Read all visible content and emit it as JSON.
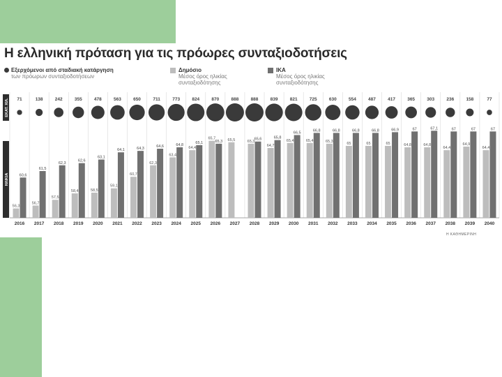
{
  "title": "Η ελληνική πρόταση για τις πρόωρες συνταξιοδοτήσεις",
  "legend": {
    "exits": {
      "label": "Εξερχόμενοι από σταδιακή κατάργηση",
      "sub": "των πρόωρων συνταξιοδοτήσεων",
      "color": "#3a3a3a"
    },
    "public": {
      "label": "Δημόσιο",
      "sub": "Μέσος όρος ηλικίας συνταξιοδότησης",
      "color": "#bdbdbd"
    },
    "ika": {
      "label": "ΙΚΑ",
      "sub": "Μέσος όρος ηλικίας συνταξιοδότησης",
      "color": "#707070"
    }
  },
  "side_labels": {
    "exits": "ΕΚΑΤ. ΧΙΛ.",
    "age": "ΗΛΙΚΙΑ"
  },
  "credit": "Η ΚΑΘΗΜΕΡΙΝΗ",
  "chart_data": {
    "type": "bar",
    "categories": [
      "2016",
      "2017",
      "2018",
      "2019",
      "2020",
      "2021",
      "2022",
      "2023",
      "2024",
      "2025",
      "2026",
      "2027",
      "2028",
      "2029",
      "2030",
      "2031",
      "2032",
      "2033",
      "2034",
      "2035",
      "2036",
      "2037",
      "2038",
      "2039",
      "2040"
    ],
    "exits": [
      71,
      138,
      242,
      355,
      478,
      563,
      650,
      711,
      773,
      824,
      870,
      888,
      888,
      839,
      821,
      725,
      630,
      554,
      487,
      417,
      365,
      303,
      236,
      158,
      77
    ],
    "exits_labels": [
      "71",
      "138",
      "242",
      "355",
      "478",
      "563",
      "650",
      "711",
      "773",
      "824",
      "870",
      "888",
      "888",
      "839",
      "821",
      "725",
      "630",
      "554",
      "487",
      "417",
      "365",
      "303",
      "236",
      "158",
      "77"
    ],
    "series": [
      {
        "name": "Δημόσιο",
        "color": "#bdbdbd",
        "values": [
          56.3,
          56.7,
          57.5,
          58.4,
          58.5,
          59.1,
          60.7,
          62.3,
          63.4,
          64.4,
          65.7,
          65.5,
          65.3,
          64.7,
          65.4,
          65.4,
          65.3,
          65,
          65,
          65,
          64.8,
          64.8,
          64.4,
          64.9,
          64.4
        ],
        "labels": [
          "56,3",
          "56,7",
          "57,5",
          "58,4",
          "58,5",
          "59,1",
          "60,7",
          "62,3",
          "63,4",
          "64,4",
          "65,7",
          "65,5",
          "65,3",
          "64,7",
          "65,4",
          "65,4",
          "65,3",
          "65",
          "65",
          "65",
          "64,8",
          "64,8",
          "64,4",
          "64,9",
          "64,4"
        ]
      },
      {
        "name": "ΙΚΑ",
        "color": "#707070",
        "values": [
          60.6,
          61.5,
          62.3,
          62.6,
          63.1,
          64.1,
          64.3,
          64.6,
          64.8,
          65.1,
          65.3,
          null,
          65.6,
          65.8,
          66.5,
          66.8,
          66.8,
          66.8,
          66.8,
          66.9,
          67,
          67.1,
          67,
          67,
          67
        ],
        "labels": [
          "60,6",
          "61,5",
          "62,3",
          "62,6",
          "63,1",
          "64,1",
          "64,3",
          "64,6",
          "64,8",
          "65,1",
          "65,3",
          "",
          "65,6",
          "65,8",
          "66,5",
          "66,8",
          "66,8",
          "66,8",
          "66,8",
          "66,9",
          "67",
          "67,1",
          "67",
          "67",
          "67"
        ]
      }
    ]
  }
}
